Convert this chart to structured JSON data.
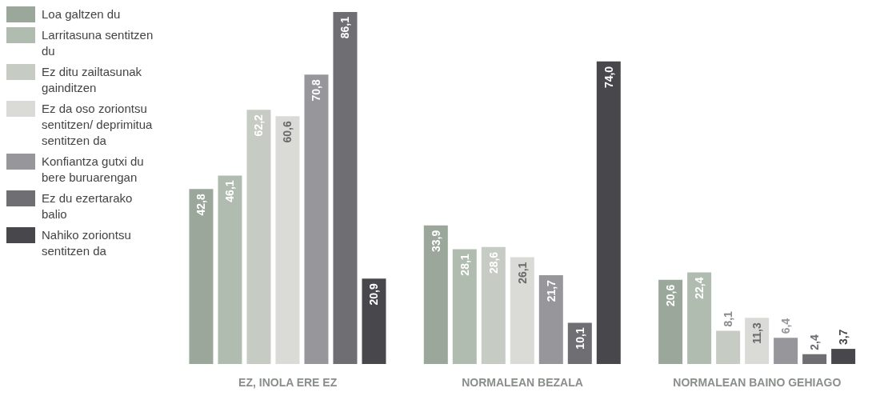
{
  "chart_data": {
    "type": "bar",
    "categories": [
      "EZ, INOLA ERE EZ",
      "NORMALEAN BEZALA",
      "NORMALEAN BAINO GEHIAGO"
    ],
    "legend": "left",
    "grid": false,
    "series": [
      {
        "name": "Loa galtzen du",
        "color": "#9aa79a",
        "values": [
          42.8,
          33.9,
          20.6
        ],
        "value_labels": [
          "42,8",
          "33,9",
          "20,6"
        ]
      },
      {
        "name": "Larritasuna sentitzen du",
        "color": "#b0bcb0",
        "values": [
          46.1,
          28.1,
          22.4
        ],
        "value_labels": [
          "46,1",
          "28,1",
          "22,4"
        ]
      },
      {
        "name": "Ez ditu zailtasunak gainditzen",
        "color": "#c6cbc3",
        "values": [
          62.2,
          28.6,
          8.1
        ],
        "value_labels": [
          "62,2",
          "28,6",
          "8,1"
        ]
      },
      {
        "name": "Ez da oso zoriontsu sentitzen/ deprimitua sentitzen da",
        "color": "#dadad6",
        "values": [
          60.6,
          26.1,
          11.3
        ],
        "value_labels": [
          "60,6",
          "26,1",
          "11,3"
        ]
      },
      {
        "name": "Konfiantza gutxi du bere buruarengan",
        "color": "#96969b",
        "values": [
          70.8,
          21.7,
          6.4
        ],
        "value_labels": [
          "70,8",
          "21,7",
          "6,4"
        ]
      },
      {
        "name": "Ez du ezertarako balio",
        "color": "#6e6e73",
        "values": [
          86.1,
          10.1,
          2.4
        ],
        "value_labels": [
          "86,1",
          "10,1",
          "2,4"
        ]
      },
      {
        "name": "Nahiko zoriontsu sentitzen da",
        "color": "#48484c",
        "values": [
          20.9,
          74.0,
          3.7
        ],
        "value_labels": [
          "20,9",
          "74,0",
          "3,7"
        ]
      }
    ]
  }
}
